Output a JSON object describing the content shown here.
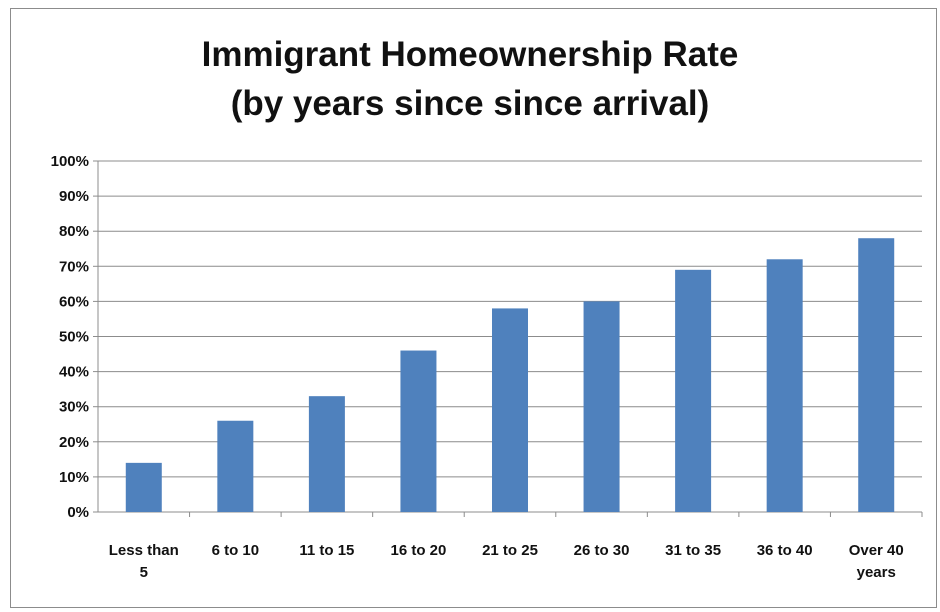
{
  "chart_data": {
    "type": "bar",
    "title": "Immigrant Homeownership Rate",
    "subtitle": "(by years since since arrival)",
    "categories": [
      [
        "Less than",
        "5"
      ],
      [
        "6 to 10"
      ],
      [
        "11 to 15"
      ],
      [
        "16 to 20"
      ],
      [
        "21 to 25"
      ],
      [
        "26 to 30"
      ],
      [
        "31 to 35"
      ],
      [
        "36 to 40"
      ],
      [
        "Over 40",
        "years"
      ]
    ],
    "values": [
      14,
      26,
      33,
      46,
      58,
      60,
      69,
      72,
      78
    ],
    "ylim": [
      0,
      100
    ],
    "y_ticks": [
      "0%",
      "10%",
      "20%",
      "30%",
      "40%",
      "50%",
      "60%",
      "70%",
      "80%",
      "90%",
      "100%"
    ],
    "grid": true,
    "legend": "none",
    "bar_color": "#4f81bd"
  }
}
